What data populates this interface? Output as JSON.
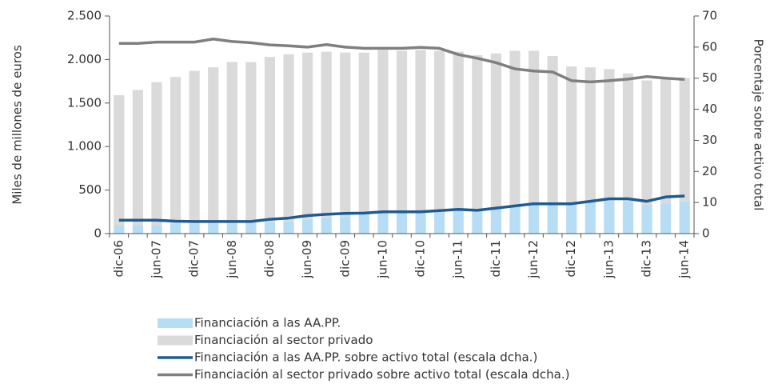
{
  "chart_data": {
    "type": "bar",
    "y_label": "Miles de millones de euros",
    "y2_label": "Porcentaje sobre activo total",
    "categories": [
      "dic-06",
      null,
      "jun-07",
      null,
      "dic-07",
      null,
      "jun-08",
      null,
      "dic-08",
      null,
      "jun-09",
      null,
      "dic-09",
      null,
      "jun-10",
      null,
      "dic-10",
      null,
      "jun-11",
      null,
      "dic-11",
      null,
      "jun-12",
      null,
      "dic-12",
      null,
      "jun-13",
      null,
      "dic-13",
      null,
      "jun-14"
    ],
    "series": [
      {
        "name": "Financiación a las AA.PP.",
        "type": "bar",
        "color": "#b7ddf5",
        "values": [
          100,
          100,
          100,
          110,
          110,
          110,
          110,
          120,
          130,
          140,
          160,
          180,
          200,
          220,
          230,
          240,
          250,
          260,
          270,
          270,
          290,
          310,
          330,
          340,
          350,
          360,
          380,
          370,
          330,
          340,
          370
        ]
      },
      {
        "name": "Financiación al sector privado",
        "type": "bar",
        "color": "#dadada",
        "values": [
          1490,
          1550,
          1640,
          1690,
          1760,
          1800,
          1860,
          1850,
          1900,
          1920,
          1920,
          1910,
          1880,
          1860,
          1880,
          1860,
          1860,
          1840,
          1820,
          1780,
          1780,
          1790,
          1770,
          1700,
          1570,
          1550,
          1510,
          1470,
          1430,
          1440,
          1420
        ]
      },
      {
        "name": "Financiación a las AA.PP. sobre activo total (escala dcha.)",
        "type": "line",
        "axis": "y2",
        "color": "#1d5c93",
        "values": [
          4.3,
          4.3,
          4.3,
          4.0,
          3.9,
          3.9,
          3.9,
          3.9,
          4.6,
          5.0,
          5.8,
          6.2,
          6.5,
          6.6,
          7.0,
          7.0,
          7.0,
          7.4,
          7.8,
          7.5,
          8.2,
          8.9,
          9.6,
          9.6,
          9.6,
          10.4,
          11.2,
          11.2,
          10.4,
          11.8,
          12.1
        ]
      },
      {
        "name": "Financiación al sector privado sobre activo total (escala dcha.)",
        "type": "line",
        "axis": "y2",
        "color": "#7f7f7f",
        "values": [
          61.2,
          61.2,
          61.6,
          61.6,
          61.6,
          62.6,
          61.8,
          61.4,
          60.7,
          60.4,
          60.0,
          60.8,
          60.0,
          59.6,
          59.6,
          59.6,
          59.9,
          59.6,
          57.6,
          56.4,
          55.0,
          53.0,
          52.3,
          52.0,
          49.2,
          48.8,
          49.2,
          49.7,
          50.5,
          50.0,
          49.6
        ]
      }
    ],
    "ylim": [
      0,
      2500
    ],
    "yticks": [
      0,
      500,
      {
        "value": 1000,
        "label": "1.000"
      },
      {
        "value": 1500,
        "label": "1.500"
      },
      {
        "value": 2000,
        "label": "2.000"
      },
      {
        "value": 2500,
        "label": "2.500"
      }
    ],
    "y2lim": [
      0,
      70
    ],
    "y2ticks": [
      0,
      10,
      20,
      30,
      40,
      50,
      60,
      70
    ],
    "stacked": true
  }
}
